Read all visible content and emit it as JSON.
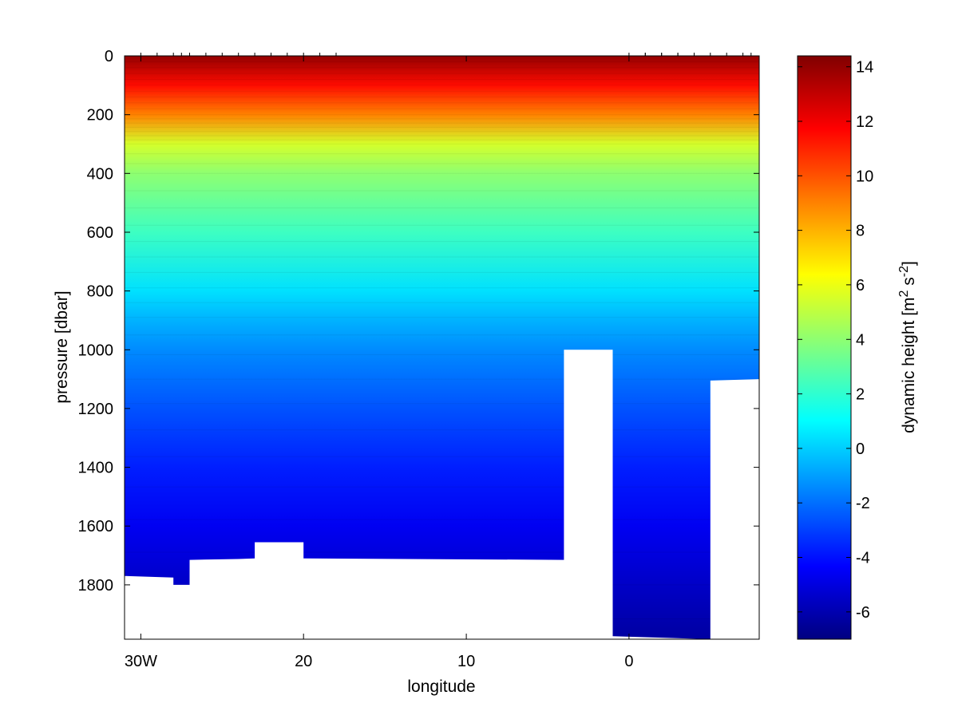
{
  "chart_data": {
    "type": "heatmap",
    "subtype": "filled-contour section",
    "title": "",
    "xlabel": "longitude",
    "ylabel": "pressure [dbar]",
    "x_axis": {
      "range": [
        -31,
        8
      ],
      "direction": "west-negative",
      "ticks": [
        {
          "value": -30,
          "label": "30W"
        },
        {
          "value": -20,
          "label": "20"
        },
        {
          "value": -10,
          "label": "10"
        },
        {
          "value": 0,
          "label": "0"
        }
      ]
    },
    "y_axis": {
      "range": [
        0,
        1985
      ],
      "reversed": true,
      "ticks": [
        {
          "value": 0,
          "label": "0"
        },
        {
          "value": 200,
          "label": "200"
        },
        {
          "value": 400,
          "label": "400"
        },
        {
          "value": 600,
          "label": "600"
        },
        {
          "value": 800,
          "label": "800"
        },
        {
          "value": 1000,
          "label": "1000"
        },
        {
          "value": 1200,
          "label": "1200"
        },
        {
          "value": 1400,
          "label": "1400"
        },
        {
          "value": 1600,
          "label": "1600"
        },
        {
          "value": 1800,
          "label": "1800"
        }
      ]
    },
    "colorbar": {
      "label": "dynamic height",
      "units_base": "[m",
      "units_sup1": "2",
      "units_mid": " s",
      "units_sup2": "-2",
      "units_end": "]",
      "range": [
        -7,
        14.4
      ],
      "colormap": "jet",
      "ticks": [
        {
          "value": -6,
          "label": "-6"
        },
        {
          "value": -4,
          "label": "-4"
        },
        {
          "value": -2,
          "label": "-2"
        },
        {
          "value": 0,
          "label": "0"
        },
        {
          "value": 2,
          "label": "2"
        },
        {
          "value": 4,
          "label": "4"
        },
        {
          "value": 6,
          "label": "6"
        },
        {
          "value": 8,
          "label": "8"
        },
        {
          "value": 10,
          "label": "10"
        },
        {
          "value": 12,
          "label": "12"
        },
        {
          "value": 14,
          "label": "14"
        }
      ]
    },
    "stations_longitude": [
      -30,
      -29,
      -28,
      -27.5,
      -27,
      -26,
      -25,
      -24,
      -23,
      -22,
      -21,
      -20,
      -19,
      -18,
      4,
      3,
      2,
      1,
      0,
      1,
      2,
      3,
      4,
      5,
      6,
      7,
      7.5
    ],
    "dynamic_height_profile": [
      {
        "pressure": 0,
        "value": 14
      },
      {
        "pressure": 100,
        "value": 11.5
      },
      {
        "pressure": 200,
        "value": 9
      },
      {
        "pressure": 300,
        "value": 5.5
      },
      {
        "pressure": 400,
        "value": 4
      },
      {
        "pressure": 600,
        "value": 2.3
      },
      {
        "pressure": 800,
        "value": 0.4
      },
      {
        "pressure": 900,
        "value": -0.6
      },
      {
        "pressure": 1000,
        "value": -1.4
      },
      {
        "pressure": 1200,
        "value": -2.6
      },
      {
        "pressure": 1400,
        "value": -3.7
      },
      {
        "pressure": 1600,
        "value": -4.6
      },
      {
        "pressure": 1800,
        "value": -5.5
      },
      {
        "pressure": 1985,
        "value": -6.3
      }
    ],
    "bottom_depth": [
      {
        "lon": -31,
        "pressure": 1770
      },
      {
        "lon": -28,
        "pressure": 1775
      },
      {
        "lon": -28,
        "pressure": 1800
      },
      {
        "lon": -27,
        "pressure": 1800
      },
      {
        "lon": -27,
        "pressure": 1715
      },
      {
        "lon": -24,
        "pressure": 1712
      },
      {
        "lon": -23,
        "pressure": 1710
      },
      {
        "lon": -23,
        "pressure": 1655
      },
      {
        "lon": -20,
        "pressure": 1655
      },
      {
        "lon": -20,
        "pressure": 1710
      },
      {
        "lon": -4,
        "pressure": 1715
      },
      {
        "lon": -4,
        "pressure": 1000
      },
      {
        "lon": -1,
        "pressure": 1000
      },
      {
        "lon": -1,
        "pressure": 1975
      },
      {
        "lon": 5,
        "pressure": 1985
      },
      {
        "lon": 5,
        "pressure": 1105
      },
      {
        "lon": 8,
        "pressure": 1100
      }
    ]
  }
}
